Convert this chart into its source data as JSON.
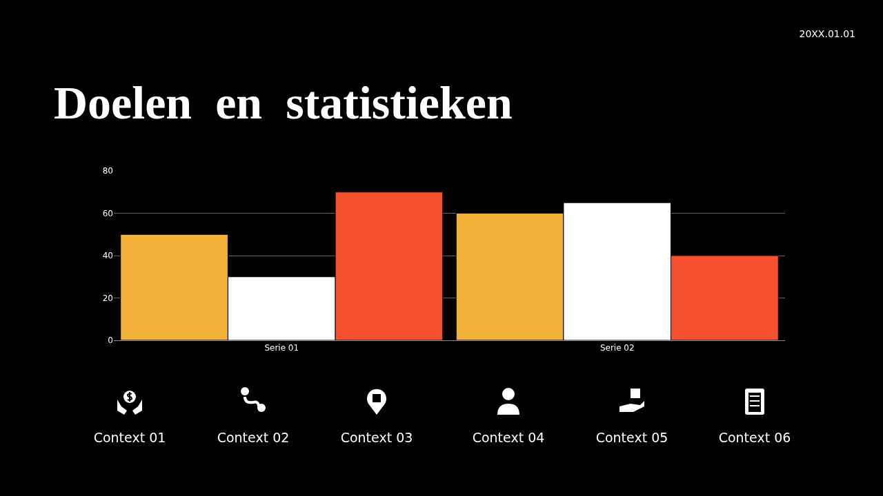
{
  "chart_data": {
    "type": "bar",
    "title": "Doelen  en  statistieken",
    "categories": [
      "Serie 01",
      "Serie 02"
    ],
    "series": [
      {
        "color": "#f2b138",
        "values": [
          50,
          60
        ]
      },
      {
        "color": "#ffffff",
        "values": [
          30,
          65
        ]
      },
      {
        "color": "#f5512f",
        "values": [
          70,
          40
        ]
      }
    ],
    "ylim": [
      0,
      80
    ],
    "yticks": [
      0,
      20,
      40,
      60,
      80
    ],
    "grid": "y",
    "annotations": [
      "20XX.01.01",
      "Context 01",
      "Context 02",
      "Context 03",
      "Context 04",
      "Context 05",
      "Context 06"
    ]
  }
}
